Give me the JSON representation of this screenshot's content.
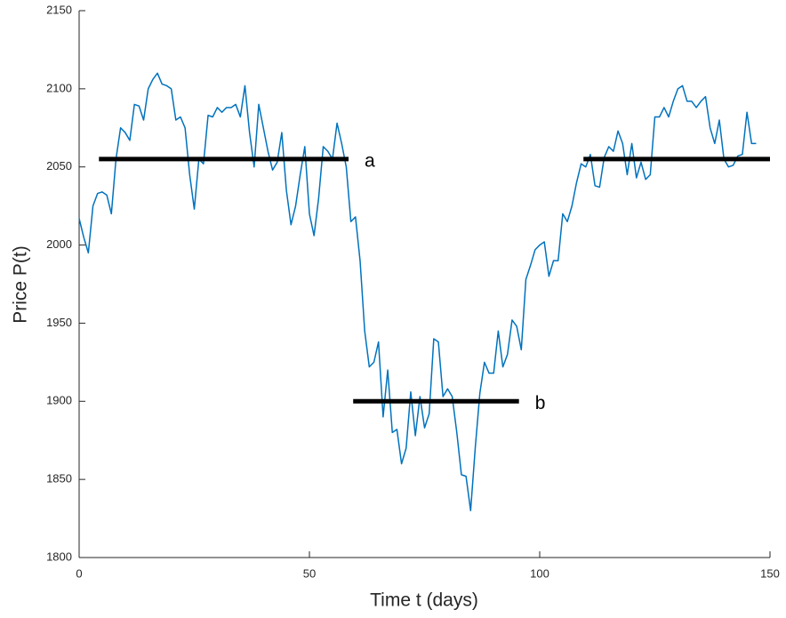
{
  "chart_data": {
    "type": "line",
    "xlabel": "Time t (days)",
    "ylabel": "Price P(t)",
    "xlim": [
      0,
      150
    ],
    "ylim": [
      1800,
      2150
    ],
    "xticks": [
      0,
      50,
      100,
      150
    ],
    "yticks": [
      1800,
      1850,
      1900,
      1950,
      2000,
      2050,
      2100,
      2150
    ],
    "x": [
      0,
      1,
      2,
      3,
      4,
      5,
      6,
      7,
      8,
      9,
      10,
      11,
      12,
      13,
      14,
      15,
      16,
      17,
      18,
      19,
      20,
      21,
      22,
      23,
      24,
      25,
      26,
      27,
      28,
      29,
      30,
      31,
      32,
      33,
      34,
      35,
      36,
      37,
      38,
      39,
      40,
      41,
      42,
      43,
      44,
      45,
      46,
      47,
      48,
      49,
      50,
      51,
      52,
      53,
      54,
      55,
      56,
      57,
      58,
      59,
      60,
      61,
      62,
      63,
      64,
      65,
      66,
      67,
      68,
      69,
      70,
      71,
      72,
      73,
      74,
      75,
      76,
      77,
      78,
      79,
      80,
      81,
      82,
      83,
      84,
      85,
      86,
      87,
      88,
      89,
      90,
      91,
      92,
      93,
      94,
      95,
      96,
      97,
      98,
      99,
      100,
      101,
      102,
      103,
      104,
      105,
      106,
      107,
      108,
      109,
      110,
      111,
      112,
      113,
      114,
      115,
      116,
      117,
      118,
      119,
      120,
      121,
      122,
      123,
      124,
      125,
      126,
      127,
      128,
      129,
      130,
      131,
      132,
      133,
      134,
      135,
      136,
      137,
      138,
      139,
      140,
      141,
      142,
      143,
      144,
      145,
      146,
      147
    ],
    "series": [
      {
        "color": "#0072bd",
        "values": [
          2017,
          2005,
          1995,
          2025,
          2033,
          2034,
          2032,
          2020,
          2055,
          2075,
          2072,
          2067,
          2090,
          2089,
          2080,
          2100,
          2106,
          2110,
          2103,
          2102,
          2100,
          2080,
          2082,
          2075,
          2045,
          2023,
          2055,
          2052,
          2083,
          2082,
          2088,
          2085,
          2088,
          2088,
          2090,
          2082,
          2102,
          2072,
          2050,
          2090,
          2075,
          2060,
          2048,
          2053,
          2072,
          2035,
          2013,
          2025,
          2045,
          2063,
          2020,
          2006,
          2030,
          2063,
          2060,
          2055,
          2078,
          2065,
          2050,
          2015,
          2018,
          1990,
          1945,
          1922,
          1925,
          1938,
          1890,
          1920,
          1880,
          1882,
          1860,
          1870,
          1906,
          1878,
          1903,
          1883,
          1892,
          1940,
          1938,
          1903,
          1908,
          1903,
          1880,
          1853,
          1852,
          1830,
          1870,
          1905,
          1925,
          1918,
          1918,
          1945,
          1922,
          1930,
          1952,
          1948,
          1933,
          1978,
          1987,
          1997,
          2000,
          2002,
          1980,
          1990,
          1990,
          2020,
          2015,
          2025,
          2040,
          2052,
          2050,
          2058,
          2038,
          2037,
          2056,
          2063,
          2060,
          2073,
          2065,
          2045,
          2065,
          2043,
          2053,
          2042,
          2045,
          2082,
          2082,
          2088,
          2082,
          2092,
          2100,
          2102,
          2092,
          2092,
          2088,
          2092,
          2095,
          2075,
          2065,
          2080,
          2055,
          2050,
          2051,
          2057,
          2058,
          2085,
          2065,
          2065
        ]
      }
    ],
    "segments": [
      {
        "label": "a",
        "xrange": [
          4.3,
          58.5
        ],
        "value": 2055,
        "color": "#000000"
      },
      {
        "label": "b",
        "xrange": [
          59.5,
          95.5
        ],
        "value": 1900,
        "color": "#000000"
      },
      {
        "xrange": [
          109.5,
          150
        ],
        "value": 2055,
        "color": "#000000"
      }
    ]
  }
}
